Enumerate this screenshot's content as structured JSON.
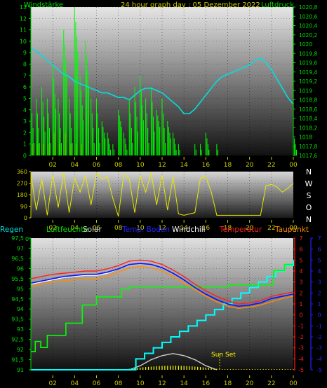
{
  "colors": {
    "wind_avg": "#00ff00",
    "gust": "#00ff00",
    "pressure": "#00e0e0",
    "direction": "#e8e800",
    "rain": "#00ff00",
    "humidity": "#00ff00",
    "solar": "#cccccc",
    "soil_temp": "#1010ff",
    "windchill": "#ffffff",
    "temperature": "#ff2020",
    "dewpoint": "#ff8c00",
    "sunshine": "#ffff00",
    "cumulative": "#00ffff",
    "tick_yellow": "#cccc00",
    "axis_green": "#00dd00",
    "axis_red": "#ff2020",
    "axis_blue": "#2222ff"
  },
  "top": {
    "title": "24 hour graph day : 05 Dezember 2022",
    "left_label": "Windstärke",
    "right_label": "Luftdruck",
    "left_ticks": [
      "0",
      "1",
      "2",
      "3",
      "4",
      "5",
      "6",
      "7",
      "8",
      "9",
      "10",
      "11",
      "12",
      "13"
    ],
    "right_ticks": [
      "1017,6",
      "1017,8",
      "1018",
      "1018,2",
      "1018,4",
      "1018,6",
      "1018,8",
      "1019",
      "1019,2",
      "1019,4",
      "1019,6",
      "1019,8",
      "1020",
      "1020,2",
      "1020,4",
      "1020,6",
      "1020,8"
    ],
    "x_ticks": [
      "02",
      "04",
      "06",
      "08",
      "10",
      "12",
      "14",
      "16",
      "18",
      "20",
      "22",
      "00"
    ]
  },
  "middle": {
    "left_ticks": [
      "0",
      "90",
      "180",
      "270",
      "360"
    ],
    "compass": [
      "N",
      "W",
      "S",
      "O",
      "N"
    ],
    "x_ticks": [
      "02",
      "04",
      "06",
      "08",
      "10",
      "12",
      "14",
      "16",
      "18",
      "20",
      "22",
      "00"
    ]
  },
  "bottom": {
    "legend": {
      "rain": "Regen",
      "humidity": "Luftfeuchte",
      "solar": "Solar",
      "soil_temp": "Temp. Boden",
      "windchill": "Windchill",
      "temperature": "Temperatur",
      "dewpoint": "Taupunkt"
    },
    "left_ticks": [
      "91",
      "91,5",
      "92",
      "92,5",
      "93",
      "93,5",
      "94",
      "94,5",
      "95",
      "95,5",
      "96",
      "96,5",
      "97",
      "97,5"
    ],
    "left_zero": "0",
    "right_red_ticks": [
      "-5",
      "-4",
      "-3",
      "-2",
      "-1",
      "0",
      "1",
      "2",
      "3",
      "4",
      "5",
      "6",
      "7"
    ],
    "right_blue_ticks": [
      "-5",
      "-4",
      "-3",
      "-2",
      "-1",
      "0",
      "1",
      "2",
      "3",
      "4",
      "5",
      "6",
      "7"
    ],
    "x_ticks": [
      "02",
      "04",
      "06",
      "08",
      "10",
      "12",
      "14",
      "16",
      "18",
      "20",
      "22",
      "00"
    ],
    "sunset_label": "Sun Set"
  },
  "chart_data": [
    {
      "type": "line",
      "title": "24 hour graph day : 05 Dezember 2022",
      "x_unit": "hour",
      "x_ticks": [
        "02",
        "04",
        "06",
        "08",
        "10",
        "12",
        "14",
        "16",
        "18",
        "20",
        "22",
        "00"
      ],
      "y_left": {
        "label": "Windstärke",
        "range": [
          0,
          13
        ]
      },
      "y_right": {
        "label": "Luftdruck",
        "range": [
          1017.6,
          1020.8
        ]
      },
      "series": [
        {
          "name": "Luftdruck",
          "axis": "right",
          "x": [
            0,
            0.5,
            1,
            1.5,
            2,
            2.5,
            3,
            3.5,
            4,
            4.5,
            5,
            5.5,
            6,
            6.5,
            7,
            7.5,
            8,
            8.5,
            9,
            9.5,
            10,
            10.5,
            11,
            11.5,
            12,
            12.5,
            13,
            13.5,
            14,
            14.5,
            15,
            15.5,
            16,
            16.5,
            17,
            17.5,
            18,
            18.5,
            19,
            19.5,
            20,
            20.5,
            21,
            21.5,
            22,
            22.5,
            23,
            23.5,
            24
          ],
          "values": [
            1019.9,
            1019.85,
            1019.75,
            1019.65,
            1019.55,
            1019.45,
            1019.35,
            1019.3,
            1019.2,
            1019.15,
            1019.1,
            1019.05,
            1019.0,
            1018.95,
            1018.95,
            1018.9,
            1018.85,
            1018.85,
            1018.8,
            1018.9,
            1019.0,
            1019.05,
            1019.05,
            1019.0,
            1018.95,
            1018.85,
            1018.75,
            1018.65,
            1018.5,
            1018.5,
            1018.6,
            1018.75,
            1018.9,
            1019.05,
            1019.2,
            1019.3,
            1019.35,
            1019.4,
            1019.45,
            1019.5,
            1019.55,
            1019.65,
            1019.7,
            1019.6,
            1019.45,
            1019.25,
            1019.05,
            1018.85,
            1018.7
          ]
        },
        {
          "name": "Windstärke",
          "axis": "left",
          "x": [
            0,
            0.5,
            1,
            1.5,
            2,
            2.5,
            3,
            3.5,
            4,
            4.5,
            5,
            5.5,
            6,
            6.5,
            7,
            7.5,
            8,
            8.5,
            9,
            9.5,
            10,
            10.5,
            11,
            11.5,
            12,
            12.5,
            13,
            13.5,
            14,
            14.5,
            15,
            15.5,
            16,
            16.5,
            17,
            17.5,
            18,
            18.5,
            19,
            19.5,
            20,
            20.5,
            21,
            21.5,
            22,
            22.5,
            23,
            23.5,
            24
          ],
          "values": [
            5,
            5,
            6,
            5,
            8,
            5,
            11,
            5,
            13,
            7,
            10,
            5,
            5,
            3,
            2,
            1,
            4,
            2,
            5,
            6,
            7,
            5,
            6,
            4,
            5,
            3,
            2,
            1,
            0,
            0,
            1,
            1,
            2,
            0,
            1,
            0,
            0,
            0,
            0,
            0,
            0,
            0,
            0,
            0,
            0,
            0,
            0,
            0,
            2
          ]
        },
        {
          "name": "Böen",
          "axis": "left",
          "x": [
            0,
            0.5,
            1,
            1.5,
            2,
            2.5,
            3,
            3.5,
            4,
            4.5,
            5,
            5.5,
            6,
            6.5,
            7,
            7.5,
            8,
            8.5,
            9,
            9.5,
            10,
            10.5,
            11,
            11.5,
            12,
            12.5,
            13,
            13.5,
            14,
            14.5,
            15,
            15.5,
            16,
            16.5,
            17,
            17.5,
            18,
            18.5,
            19,
            19.5,
            20,
            20.5,
            21,
            21.5,
            22,
            22.5,
            23,
            23.5,
            24
          ],
          "values": [
            1,
            1,
            1,
            1,
            2,
            1,
            2,
            1,
            1,
            1,
            0,
            0,
            0,
            0,
            0,
            0,
            0,
            0,
            0,
            0,
            0,
            0,
            0,
            0,
            0,
            0,
            0,
            0,
            0,
            0,
            0,
            0,
            0,
            0,
            0,
            0,
            0,
            0,
            0,
            0,
            0,
            0,
            0,
            0,
            0,
            0,
            0,
            0,
            0
          ]
        }
      ]
    },
    {
      "type": "line",
      "x_ticks": [
        "02",
        "04",
        "06",
        "08",
        "10",
        "12",
        "14",
        "16",
        "18",
        "20",
        "22",
        "00"
      ],
      "y_left": {
        "label": "",
        "range": [
          0,
          360
        ],
        "ticks": [
          0,
          90,
          180,
          270,
          360
        ]
      },
      "y_right_labels": [
        "N",
        "W",
        "S",
        "O",
        "N"
      ],
      "series": [
        {
          "name": "",
          "x": [
            0,
            0.5,
            1,
            1.5,
            2,
            2.5,
            3,
            3.5,
            4,
            4.5,
            5,
            5.5,
            6,
            6.5,
            7,
            7.5,
            8,
            8.5,
            9,
            9.5,
            10,
            10.5,
            11,
            11.5,
            12,
            12.5,
            13,
            13.5,
            14,
            14.5,
            15,
            15.5,
            16,
            16.5,
            17,
            17.5,
            18,
            18.5,
            19,
            19.5,
            20,
            20.5,
            21,
            21.5,
            22,
            22.5,
            23,
            23.5,
            24
          ],
          "values": [
            340,
            60,
            300,
            20,
            330,
            80,
            350,
            40,
            310,
            200,
            330,
            100,
            350,
            300,
            320,
            150,
            10,
            340,
            300,
            40,
            330,
            200,
            350,
            100,
            330,
            60,
            320,
            30,
            20,
            30,
            40,
            310,
            320,
            200,
            20,
            20,
            20,
            20,
            20,
            20,
            20,
            20,
            20,
            250,
            260,
            240,
            200,
            230,
            270
          ]
        }
      ]
    },
    {
      "type": "line",
      "x_ticks": [
        "02",
        "04",
        "06",
        "08",
        "10",
        "12",
        "14",
        "16",
        "18",
        "20",
        "22",
        "00"
      ],
      "y_left": {
        "label": "Luftfeuchte",
        "range": [
          91,
          97.5
        ]
      },
      "y_right": {
        "label": "Temperatur",
        "range": [
          -5,
          7
        ]
      },
      "annotations": [
        "Sun Set"
      ],
      "series": [
        {
          "name": "Temperatur",
          "axis": "right",
          "x": [
            0,
            1,
            2,
            3,
            4,
            5,
            6,
            7,
            8,
            9,
            10,
            11,
            12,
            13,
            14,
            15,
            16,
            17,
            18,
            19,
            20,
            21,
            22,
            23,
            24
          ],
          "values": [
            3.3,
            3.5,
            3.7,
            3.8,
            3.9,
            4.0,
            4.0,
            4.2,
            4.5,
            4.9,
            5.0,
            4.9,
            4.6,
            4.1,
            3.5,
            2.8,
            2.2,
            1.7,
            1.3,
            1.0,
            1.1,
            1.3,
            1.7,
            1.9,
            2.1
          ]
        },
        {
          "name": "Temp. Boden",
          "axis": "right",
          "x": [
            0,
            1,
            2,
            3,
            4,
            5,
            6,
            7,
            8,
            9,
            10,
            11,
            12,
            13,
            14,
            15,
            16,
            17,
            18,
            19,
            20,
            21,
            22,
            23,
            24
          ],
          "values": [
            2.9,
            3.1,
            3.3,
            3.5,
            3.6,
            3.7,
            3.7,
            3.9,
            4.2,
            4.6,
            4.7,
            4.6,
            4.3,
            3.8,
            3.2,
            2.5,
            1.9,
            1.4,
            1.0,
            0.8,
            0.9,
            1.1,
            1.5,
            1.7,
            1.9
          ]
        },
        {
          "name": "Windchill",
          "axis": "right",
          "x": [
            0,
            1,
            2,
            3,
            4,
            5,
            6,
            7,
            8,
            9,
            10,
            11,
            12,
            13,
            14,
            15,
            16,
            17,
            18,
            19,
            20,
            21,
            22,
            23,
            24
          ],
          "values": [
            2.8,
            3.0,
            3.2,
            3.4,
            3.5,
            3.6,
            3.6,
            3.8,
            4.2,
            4.6,
            4.7,
            4.6,
            4.3,
            3.8,
            3.2,
            2.5,
            1.9,
            1.4,
            1.0,
            0.8,
            0.9,
            1.1,
            1.5,
            1.7,
            1.9
          ]
        },
        {
          "name": "Taupunkt",
          "axis": "right",
          "x": [
            0,
            1,
            2,
            3,
            4,
            5,
            6,
            7,
            8,
            9,
            10,
            11,
            12,
            13,
            14,
            15,
            16,
            17,
            18,
            19,
            20,
            21,
            22,
            23,
            24
          ],
          "values": [
            2.6,
            2.8,
            3.0,
            3.1,
            3.2,
            3.3,
            3.3,
            3.5,
            3.9,
            4.3,
            4.4,
            4.3,
            4.0,
            3.5,
            2.9,
            2.3,
            1.7,
            1.2,
            0.8,
            0.6,
            0.7,
            0.9,
            1.2,
            1.5,
            1.7
          ]
        },
        {
          "name": "Luftfeuchte",
          "axis": "left",
          "x": [
            0,
            0.4,
            0.4,
            0.9,
            0.9,
            1.5,
            1.5,
            3.2,
            3.2,
            4.7,
            4.7,
            6.0,
            6.0,
            8.3,
            8.3,
            9.0,
            9.0,
            18.1,
            18.1,
            22.2,
            22.2,
            23.2,
            23.2,
            24
          ],
          "values": [
            91.9,
            91.9,
            92.4,
            92.4,
            92.1,
            92.1,
            92.7,
            92.7,
            93.3,
            93.3,
            94.2,
            94.2,
            94.6,
            94.6,
            95.0,
            95.0,
            95.1,
            95.1,
            95.2,
            95.2,
            95.9,
            95.9,
            96.2,
            96.2
          ]
        },
        {
          "name": "Regen",
          "axis": "right",
          "x": [
            0,
            1,
            2,
            3,
            4,
            5,
            6,
            7,
            8,
            9,
            9.6,
            10.4,
            11.2,
            12,
            12.8,
            13.6,
            14.4,
            15.2,
            16,
            16.8,
            17.6,
            18.4,
            19.2,
            20,
            20.8,
            21.6,
            22.4,
            23.2,
            24
          ],
          "values": [
            -5,
            -5,
            -5,
            -5,
            -5,
            -5,
            -5,
            -5,
            -5,
            -5,
            -4,
            -3.5,
            -3,
            -2.5,
            -2,
            -1.5,
            -1,
            -0.5,
            0,
            0.5,
            1,
            1.5,
            2,
            2.5,
            3,
            3.5,
            4,
            4.5,
            5
          ]
        },
        {
          "name": "Solar",
          "axis": "left",
          "x": [
            9,
            10,
            11,
            12,
            13,
            14,
            15,
            16,
            17
          ],
          "values": [
            91,
            91.2,
            91.5,
            91.7,
            91.8,
            91.7,
            91.5,
            91.2,
            91
          ]
        }
      ]
    }
  ]
}
